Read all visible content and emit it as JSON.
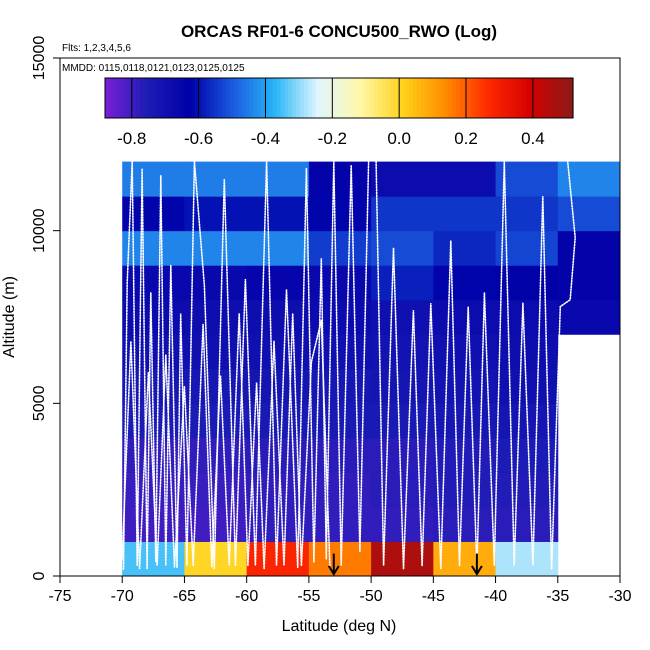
{
  "chart_data": {
    "type": "heatmap",
    "title": "ORCAS RF01-6 CONCU500_RWO (Log)",
    "flights_note": "Flts: 1,2,3,4,5,6",
    "mmdd_note": "MMDD: 0115,0118,0121,0123,0125,0125",
    "xlabel": "Latitude (deg N)",
    "ylabel": "Altitude (m)",
    "xlim": [
      -75,
      -30
    ],
    "ylim": [
      0,
      15000
    ],
    "x_ticks": [
      -75,
      -70,
      -65,
      -60,
      -55,
      -50,
      -45,
      -40,
      -35,
      -30
    ],
    "y_ticks": [
      0,
      5000,
      10000,
      15000
    ],
    "colorbar": {
      "range": [
        -0.88,
        0.52
      ],
      "ticks": [
        -0.8,
        -0.6,
        -0.4,
        -0.2,
        0.0,
        0.2,
        0.4
      ],
      "tick_labels": [
        "-0.8",
        "-0.6",
        "-0.4",
        "-0.2",
        "0.0",
        "0.2",
        "0.4"
      ],
      "colors": [
        "#7a1fd6",
        "#1c1cb5",
        "#0000a8",
        "#1a5ae0",
        "#29b6f6",
        "#e0f6ff",
        "#fff8a8",
        "#ffd21a",
        "#ff8c00",
        "#ff2a00",
        "#d40000",
        "#8b1a1a"
      ]
    },
    "x_edges": [
      -70,
      -65,
      -60,
      -55,
      -50,
      -45,
      -40,
      -35,
      -30
    ],
    "y_edges": [
      0,
      1000,
      2000,
      3000,
      4000,
      5000,
      6000,
      7000,
      8000,
      9000,
      10000,
      11000,
      12000
    ],
    "grid_values": [
      [
        -0.35,
        0.0,
        0.28,
        0.16,
        0.46,
        0.08,
        -0.28,
        null
      ],
      [
        -0.8,
        -0.8,
        -0.78,
        -0.78,
        -0.78,
        -0.77,
        -0.77,
        null
      ],
      [
        -0.79,
        -0.79,
        -0.78,
        -0.78,
        -0.77,
        -0.76,
        -0.76,
        null
      ],
      [
        -0.78,
        -0.78,
        -0.77,
        -0.77,
        -0.77,
        -0.76,
        -0.75,
        null
      ],
      [
        -0.75,
        -0.75,
        -0.74,
        -0.74,
        -0.74,
        -0.73,
        -0.72,
        null
      ],
      [
        -0.73,
        -0.73,
        -0.72,
        -0.73,
        -0.72,
        -0.71,
        -0.7,
        null
      ],
      [
        -0.7,
        -0.7,
        -0.7,
        -0.7,
        -0.71,
        -0.7,
        -0.69,
        null
      ],
      [
        -0.68,
        -0.69,
        -0.69,
        -0.68,
        -0.7,
        -0.68,
        -0.68,
        -0.66
      ],
      [
        -0.66,
        -0.66,
        -0.65,
        -0.66,
        -0.58,
        -0.62,
        -0.63,
        -0.64
      ],
      [
        -0.44,
        -0.44,
        -0.44,
        -0.54,
        -0.52,
        -0.57,
        -0.53,
        -0.64
      ],
      [
        -0.62,
        -0.6,
        -0.6,
        -0.62,
        -0.55,
        -0.55,
        -0.55,
        -0.52
      ],
      [
        -0.45,
        -0.45,
        -0.45,
        -0.64,
        -0.68,
        -0.68,
        -0.52,
        -0.44
      ]
    ],
    "arrows_latitude": [
      -53,
      -41.5
    ],
    "flight_tracks": [
      [
        [
          -69.9,
          200
        ],
        [
          -69.6,
          8500
        ],
        [
          -69.2,
          12000
        ],
        [
          -68.8,
          300
        ],
        [
          -68.4,
          11800
        ],
        [
          -68.0,
          200
        ],
        [
          -67.7,
          8200
        ],
        [
          -67.3,
          400
        ],
        [
          -66.9,
          11600
        ],
        [
          -66.5,
          300
        ],
        [
          -66.1,
          9000
        ],
        [
          -65.6,
          250
        ],
        [
          -65.3,
          7600
        ],
        [
          -64.8,
          300
        ],
        [
          -64.2,
          12000
        ],
        [
          -63.4,
          8400
        ],
        [
          -62.6,
          200
        ],
        [
          -61.8,
          11500
        ],
        [
          -60.9,
          300
        ],
        [
          -60.1,
          8600
        ],
        [
          -59.3,
          300
        ],
        [
          -58.4,
          12000
        ],
        [
          -57.6,
          300
        ],
        [
          -56.8,
          8300
        ],
        [
          -55.9,
          250
        ],
        [
          -55.2,
          11800
        ],
        [
          -54.6,
          400
        ],
        [
          -54.0,
          9200
        ],
        [
          -53.6,
          500
        ],
        [
          -53.0,
          12000
        ],
        [
          -52.4,
          300
        ],
        [
          -51.6,
          11900
        ],
        [
          -50.9,
          700
        ],
        [
          -50.2,
          12000
        ]
      ],
      [
        [
          -70.0,
          500
        ],
        [
          -69.3,
          6800
        ],
        [
          -68.6,
          200
        ],
        [
          -67.9,
          5900
        ],
        [
          -67.2,
          300
        ],
        [
          -66.5,
          6400
        ],
        [
          -65.8,
          250
        ],
        [
          -65.0,
          5500
        ],
        [
          -64.3,
          300
        ],
        [
          -63.5,
          7300
        ],
        [
          -62.8,
          250
        ],
        [
          -62.1,
          5800
        ],
        [
          -61.4,
          300
        ],
        [
          -60.6,
          7600
        ],
        [
          -59.9,
          300
        ],
        [
          -59.2,
          5600
        ],
        [
          -58.6,
          200
        ],
        [
          -57.8,
          6800
        ],
        [
          -57.0,
          300
        ],
        [
          -56.3,
          7600
        ],
        [
          -55.6,
          300
        ],
        [
          -54.8,
          6200
        ],
        [
          -54.0,
          7400
        ],
        [
          -53.3,
          200
        ]
      ],
      [
        [
          -49.6,
          12000
        ],
        [
          -49.0,
          300
        ],
        [
          -48.2,
          9500
        ],
        [
          -47.4,
          200
        ],
        [
          -46.6,
          7700
        ],
        [
          -45.9,
          300
        ],
        [
          -45.2,
          7900
        ],
        [
          -44.4,
          200
        ],
        [
          -43.6,
          9700
        ],
        [
          -42.9,
          300
        ],
        [
          -42.2,
          7800
        ],
        [
          -41.5,
          200
        ],
        [
          -40.9,
          8200
        ],
        [
          -40.1,
          300
        ],
        [
          -39.3,
          12000
        ],
        [
          -38.5,
          300
        ],
        [
          -37.8,
          7900
        ],
        [
          -37.0,
          300
        ],
        [
          -36.2,
          11000
        ],
        [
          -35.5,
          200
        ],
        [
          -34.8,
          7800
        ],
        [
          -34.0,
          8000
        ],
        [
          -33.6,
          9800
        ],
        [
          -34.2,
          12000
        ]
      ]
    ]
  }
}
